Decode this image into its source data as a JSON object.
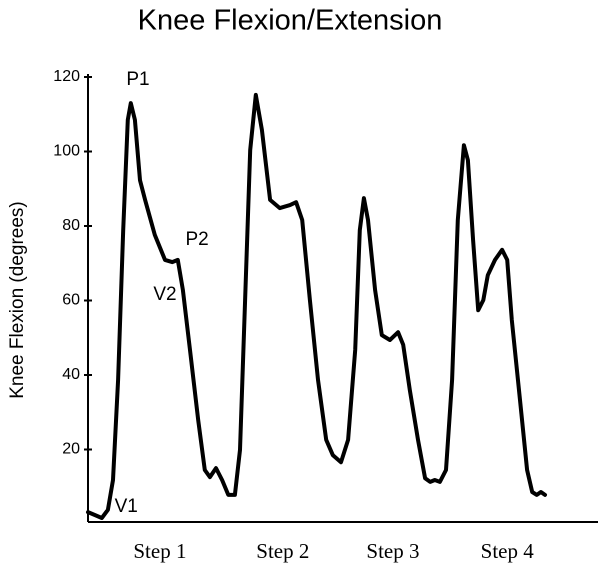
{
  "chart_data": {
    "type": "line",
    "title": "Knee Flexion/Extension",
    "y_label": "Knee Flexion (degrees)",
    "color": "#000000",
    "x": [
      0,
      1.4,
      2.7,
      3.9,
      4.9,
      5.9,
      6.9,
      7.8,
      8.4,
      9.2,
      10.2,
      11.2,
      13.1,
      15.1,
      16.5,
      17.6,
      18.6,
      20.0,
      21.6,
      22.9,
      23.9,
      25.1,
      26.3,
      27.5,
      28.8,
      29.8,
      30.8,
      31.8,
      32.9,
      34.1,
      35.7,
      37.6,
      39.6,
      40.8,
      42.0,
      43.5,
      45.1,
      46.7,
      48.0,
      49.6,
      51.0,
      52.4,
      53.3,
      54.1,
      54.9,
      56.3,
      57.6,
      59.2,
      60.8,
      61.8,
      63.1,
      64.7,
      66.1,
      67.1,
      68.0,
      69.0,
      70.2,
      71.4,
      72.5,
      73.7,
      74.5,
      75.5,
      76.5,
      77.5,
      78.4,
      79.8,
      81.2,
      82.2,
      83.1,
      84.7,
      86.1,
      87.1,
      88.0,
      88.8,
      89.6
    ],
    "values": [
      3.2,
      2.4,
      1.6,
      3.8,
      11.8,
      38.7,
      78.9,
      108.5,
      113.0,
      108.5,
      92.3,
      87.0,
      77.6,
      70.9,
      70.3,
      70.9,
      62.8,
      46.7,
      27.9,
      14.5,
      12.6,
      15.0,
      11.8,
      7.8,
      7.8,
      19.9,
      60.1,
      100.4,
      115.2,
      105.8,
      87.0,
      84.8,
      85.6,
      86.4,
      81.6,
      60.1,
      38.7,
      22.6,
      18.5,
      16.6,
      22.6,
      46.7,
      78.9,
      87.5,
      81.6,
      62.8,
      50.7,
      49.4,
      51.5,
      48.1,
      36.0,
      22.6,
      12.3,
      11.3,
      11.8,
      11.3,
      14.5,
      38.7,
      81.6,
      101.7,
      97.7,
      76.2,
      57.4,
      60.1,
      66.8,
      70.9,
      73.6,
      70.9,
      54.8,
      33.3,
      14.5,
      8.6,
      7.8,
      8.6,
      7.8
    ],
    "xlim": [
      0,
      100
    ],
    "xticks": [
      {
        "value": 14.1,
        "label": "Step 1"
      },
      {
        "value": 38.2,
        "label": "Step 2"
      },
      {
        "value": 59.8,
        "label": "Step 3"
      },
      {
        "value": 82.2,
        "label": "Step 4"
      }
    ],
    "ylim": [
      0,
      120
    ],
    "yticks": [
      20,
      40,
      60,
      80,
      100,
      120
    ],
    "grid": false,
    "annotations": [
      {
        "text": "P1",
        "x": 9.8,
        "y": 119.2
      },
      {
        "text": "P2",
        "x": 21.4,
        "y": 76.2
      },
      {
        "text": "V2",
        "x": 15.1,
        "y": 61.5
      },
      {
        "text": "V1",
        "x": 7.5,
        "y": 4.6
      }
    ]
  }
}
